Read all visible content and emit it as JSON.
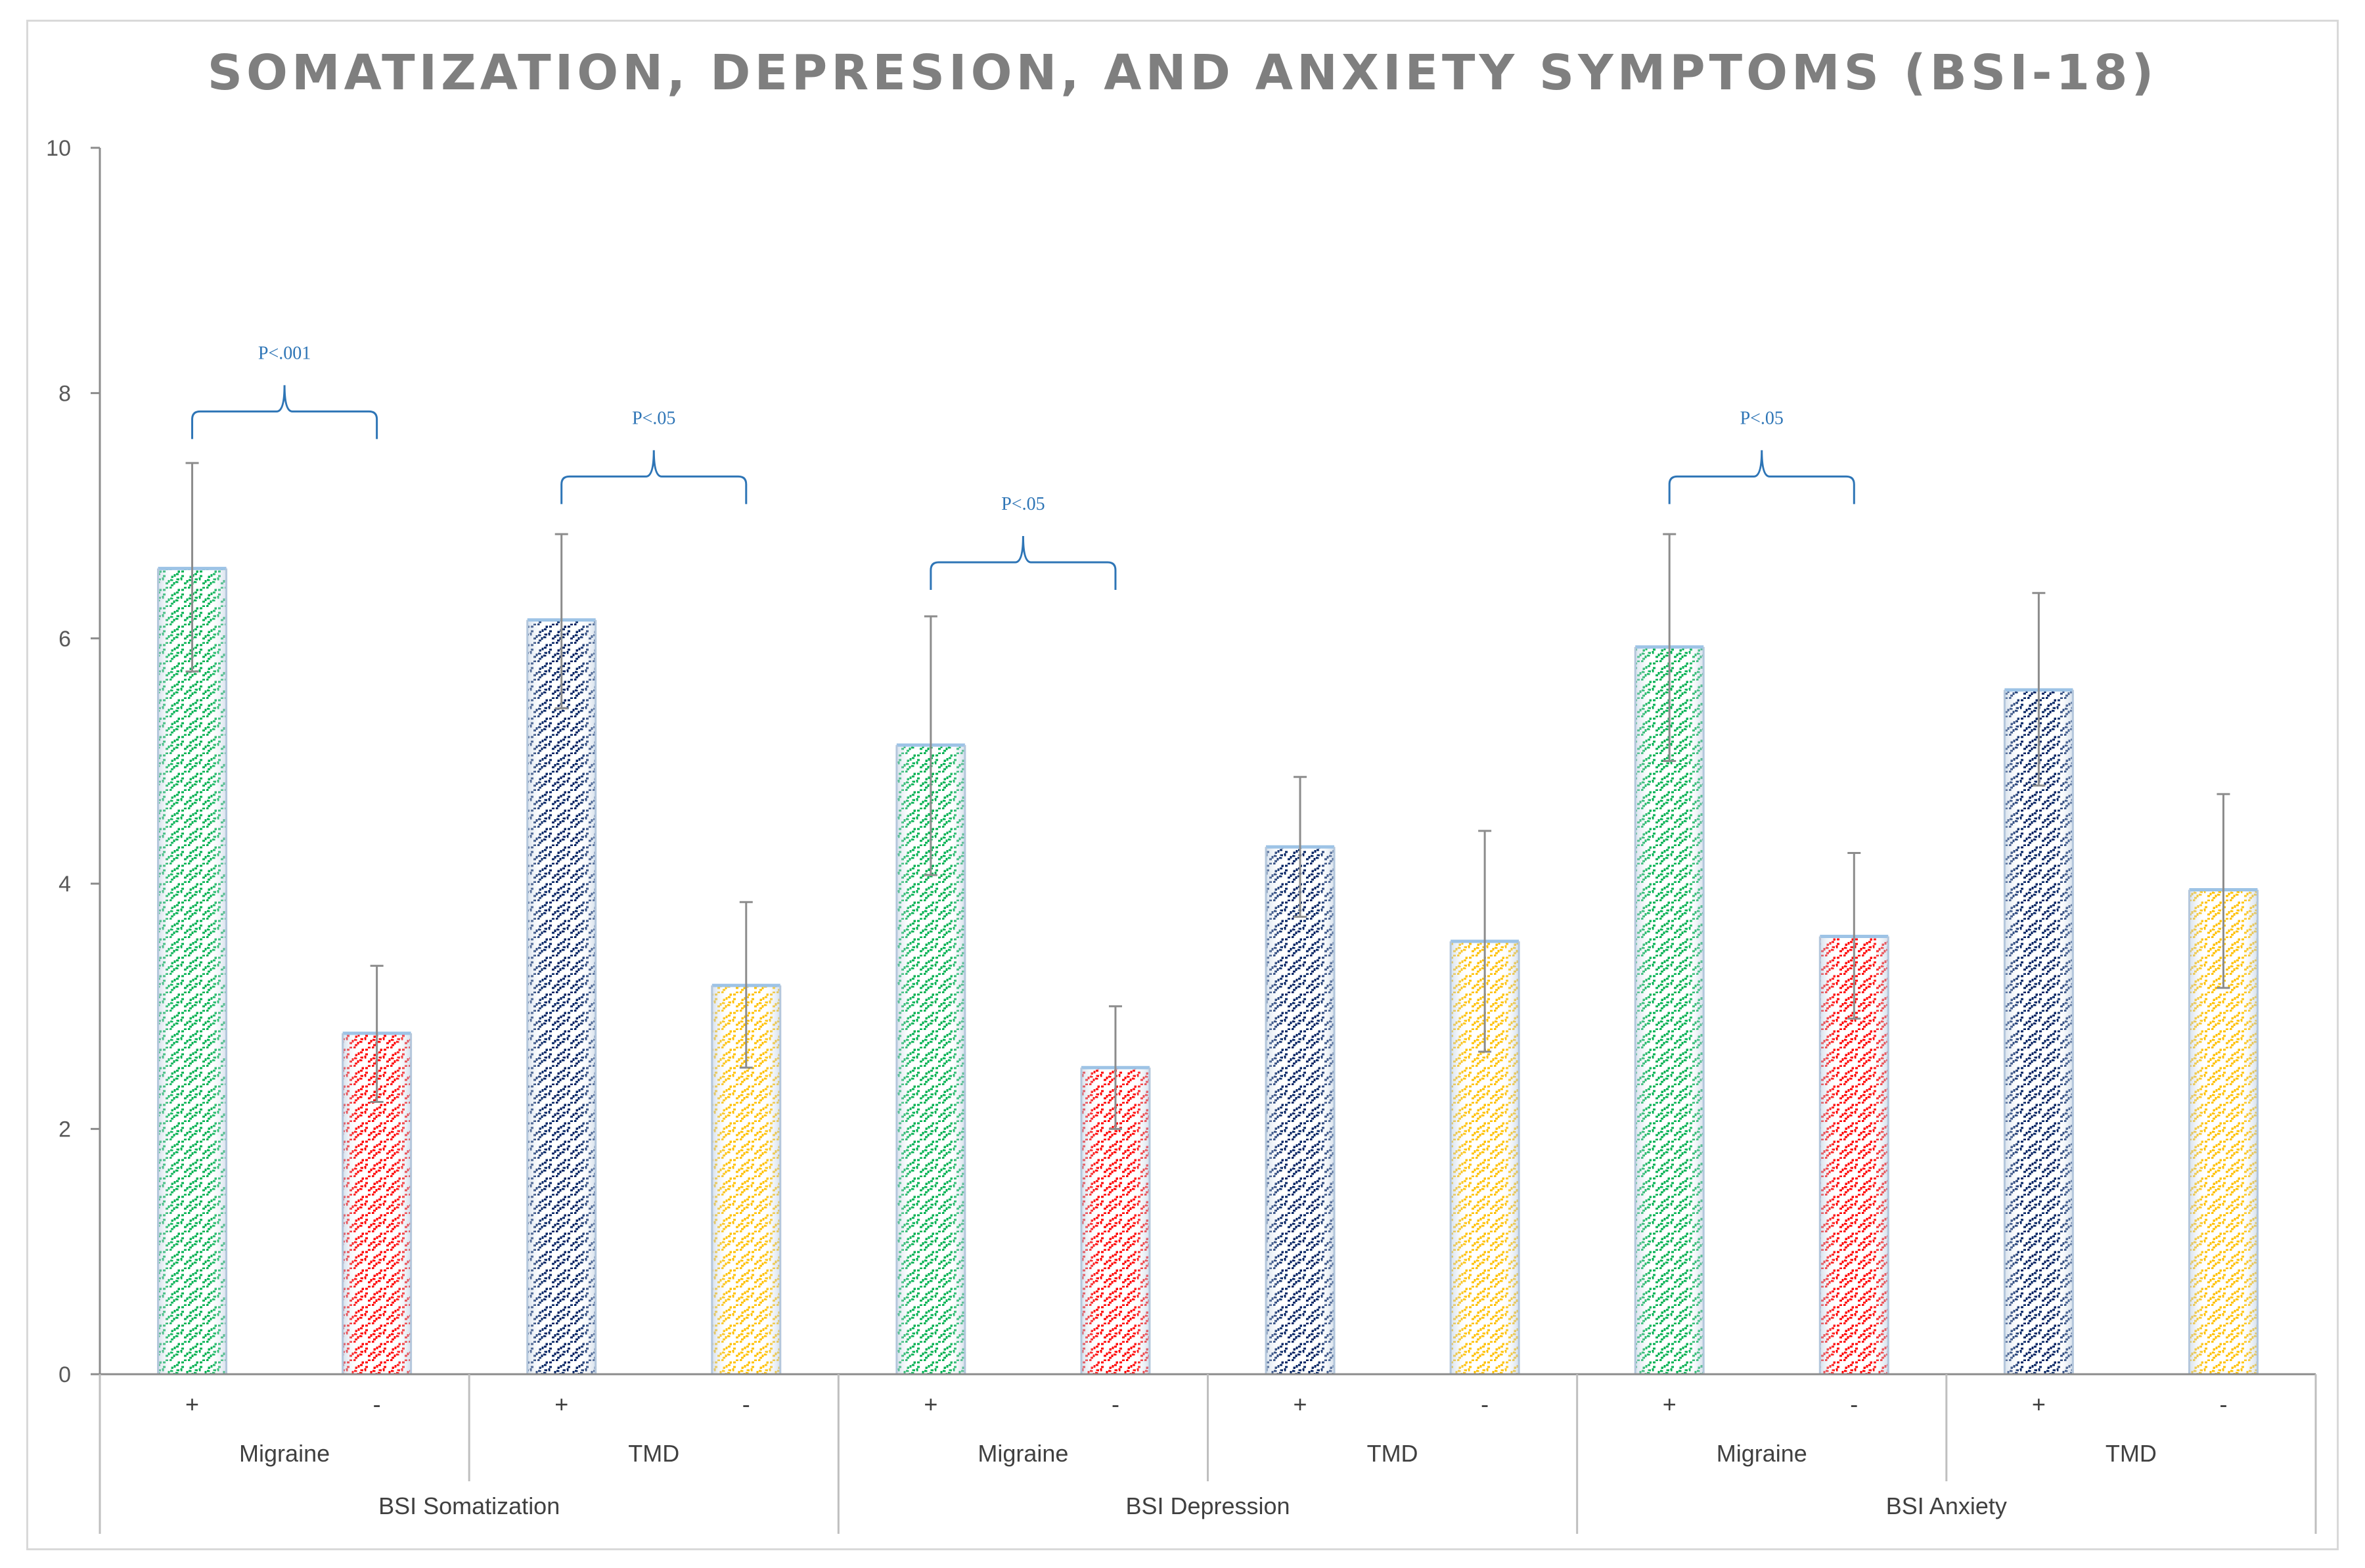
{
  "chart_data": {
    "type": "bar",
    "title": "SOMATIZATION, DEPRESION, AND ANXIETY SYMPTOMS (BSI-18)",
    "xlabel": "",
    "ylabel": "",
    "ylim": [
      0,
      10
    ],
    "yticks": [
      "0",
      "2",
      "4",
      "6",
      "8",
      "10"
    ],
    "groups": [
      "BSI Somatization",
      "BSI Depression",
      "BSI Anxiety"
    ],
    "subgroups": [
      "Migraine",
      "TMD",
      "Migraine",
      "TMD",
      "Migraine",
      "TMD"
    ],
    "categories": [
      "+",
      "-",
      "+",
      "-",
      "+",
      "-",
      "+",
      "-",
      "+",
      "-",
      "+",
      "-"
    ],
    "values": [
      6.57,
      2.78,
      6.15,
      3.17,
      5.13,
      2.5,
      4.3,
      3.53,
      5.93,
      3.57,
      5.58,
      3.95
    ],
    "error_high": [
      7.43,
      3.33,
      6.85,
      3.85,
      6.18,
      3.0,
      4.87,
      4.43,
      6.85,
      4.25,
      6.37,
      4.73
    ],
    "error_low": [
      5.73,
      2.22,
      5.43,
      2.5,
      4.07,
      2.0,
      3.73,
      2.63,
      5.0,
      2.9,
      4.8,
      3.15
    ],
    "colors": [
      "#00b050",
      "#ff0000",
      "#002060",
      "#ffc000",
      "#00b050",
      "#ff0000",
      "#002060",
      "#ffc000",
      "#00b050",
      "#ff0000",
      "#002060",
      "#ffc000"
    ],
    "annotations": [
      {
        "text": "P<.001",
        "from_bar": 0,
        "to_bar": 1,
        "y": 7.85
      },
      {
        "text": "P<.05",
        "from_bar": 2,
        "to_bar": 3,
        "y": 7.32
      },
      {
        "text": "P<.05",
        "from_bar": 4,
        "to_bar": 5,
        "y": 6.62
      },
      {
        "text": "P<.05",
        "from_bar": 8,
        "to_bar": 9,
        "y": 7.32
      }
    ]
  }
}
